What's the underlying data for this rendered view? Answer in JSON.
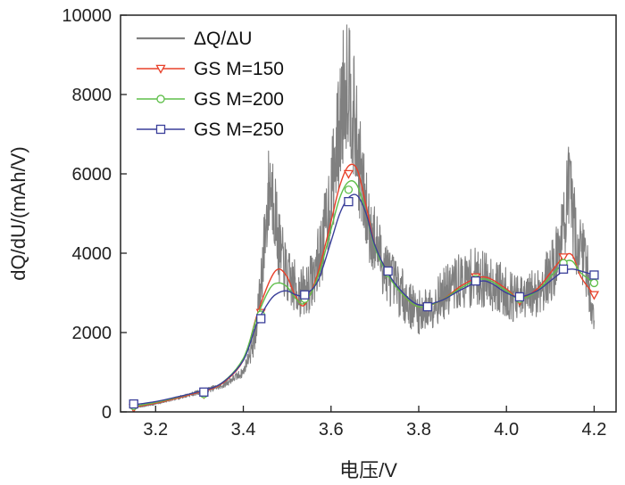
{
  "chart_data": {
    "type": "line",
    "xlabel": "电压/V",
    "ylabel": "dQ/dU/(mAh/V)",
    "xlim": [
      3.12,
      4.25
    ],
    "ylim": [
      0,
      10000
    ],
    "x_ticks": [
      3.2,
      3.4,
      3.6,
      3.8,
      4.0,
      4.2
    ],
    "x_tick_labels": [
      "3.2",
      "3.4",
      "3.6",
      "3.8",
      "4.0",
      "4.2"
    ],
    "y_ticks": [
      0,
      2000,
      4000,
      6000,
      8000,
      10000
    ],
    "y_tick_labels": [
      "0",
      "2000",
      "4000",
      "6000",
      "8000",
      "10000"
    ],
    "legend_position": "top-left",
    "grid": false,
    "raw_series": {
      "name": "ΔQ/ΔU",
      "color": "#808080",
      "x": [
        3.15,
        3.2,
        3.25,
        3.3,
        3.35,
        3.4,
        3.43,
        3.45,
        3.46,
        3.47,
        3.48,
        3.5,
        3.52,
        3.54,
        3.56,
        3.58,
        3.6,
        3.62,
        3.63,
        3.64,
        3.65,
        3.66,
        3.67,
        3.68,
        3.7,
        3.72,
        3.74,
        3.76,
        3.78,
        3.8,
        3.82,
        3.85,
        3.88,
        3.9,
        3.93,
        3.96,
        4.0,
        4.03,
        4.06,
        4.09,
        4.11,
        4.13,
        4.14,
        4.15,
        4.16,
        4.18,
        4.2
      ],
      "values": [
        100,
        200,
        350,
        500,
        650,
        1000,
        2000,
        4500,
        5800,
        5400,
        4200,
        3400,
        3100,
        3000,
        3400,
        4200,
        5500,
        7200,
        8200,
        8600,
        7600,
        6600,
        5800,
        5000,
        4300,
        3700,
        3300,
        3000,
        2700,
        2500,
        2600,
        2900,
        3200,
        3300,
        3400,
        3300,
        3000,
        2800,
        2950,
        3300,
        3700,
        4600,
        5600,
        5100,
        4300,
        3900,
        2200
      ]
    },
    "series": [
      {
        "name": "GS M=150",
        "color": "#e8402a",
        "marker": "triangle-down",
        "x": [
          3.15,
          3.2,
          3.25,
          3.3,
          3.35,
          3.4,
          3.43,
          3.46,
          3.48,
          3.5,
          3.52,
          3.54,
          3.57,
          3.6,
          3.62,
          3.64,
          3.66,
          3.68,
          3.7,
          3.73,
          3.76,
          3.8,
          3.85,
          3.9,
          3.95,
          4.0,
          4.03,
          4.07,
          4.1,
          4.13,
          4.15,
          4.17,
          4.2
        ],
        "values": [
          120,
          220,
          350,
          500,
          700,
          1300,
          2400,
          3300,
          3600,
          3400,
          2900,
          2700,
          3500,
          4800,
          5700,
          6200,
          6100,
          5200,
          4200,
          3500,
          3000,
          2650,
          2800,
          3200,
          3400,
          3100,
          2850,
          3100,
          3500,
          3900,
          3950,
          3400,
          2950
        ],
        "marker_x": [
          3.15,
          3.31,
          3.44,
          3.54,
          3.64,
          3.73,
          3.82,
          3.93,
          4.03,
          4.13,
          4.2
        ],
        "marker_values": [
          100,
          450,
          2500,
          2800,
          6000,
          3550,
          2650,
          3400,
          2800,
          3900,
          2950
        ]
      },
      {
        "name": "GS M=200",
        "color": "#5fbf4a",
        "marker": "circle",
        "x": [
          3.15,
          3.2,
          3.25,
          3.3,
          3.35,
          3.4,
          3.43,
          3.46,
          3.48,
          3.5,
          3.52,
          3.54,
          3.57,
          3.6,
          3.62,
          3.64,
          3.66,
          3.68,
          3.7,
          3.73,
          3.76,
          3.8,
          3.85,
          3.9,
          3.95,
          4.0,
          4.03,
          4.07,
          4.1,
          4.13,
          4.15,
          4.17,
          4.2
        ],
        "values": [
          140,
          240,
          370,
          520,
          720,
          1350,
          2350,
          3100,
          3250,
          3150,
          2850,
          2750,
          3400,
          4600,
          5400,
          5800,
          5700,
          5000,
          4150,
          3450,
          3000,
          2650,
          2800,
          3150,
          3350,
          3050,
          2850,
          3050,
          3400,
          3750,
          3800,
          3500,
          3250
        ],
        "marker_x": [
          3.15,
          3.31,
          3.44,
          3.54,
          3.64,
          3.73,
          3.82,
          3.93,
          4.03,
          4.13,
          4.2
        ],
        "marker_values": [
          150,
          450,
          2450,
          2850,
          5600,
          3500,
          2650,
          3350,
          2850,
          3750,
          3250
        ]
      },
      {
        "name": "GS M=250",
        "color": "#3a3f9a",
        "marker": "square",
        "x": [
          3.15,
          3.2,
          3.25,
          3.3,
          3.35,
          3.4,
          3.43,
          3.46,
          3.48,
          3.5,
          3.52,
          3.54,
          3.57,
          3.6,
          3.62,
          3.64,
          3.66,
          3.68,
          3.7,
          3.73,
          3.76,
          3.8,
          3.85,
          3.9,
          3.95,
          4.0,
          4.03,
          4.07,
          4.1,
          4.13,
          4.15,
          4.17,
          4.2
        ],
        "values": [
          180,
          260,
          380,
          520,
          720,
          1300,
          2200,
          2800,
          3000,
          3050,
          2950,
          2950,
          3300,
          4300,
          5000,
          5400,
          5450,
          5000,
          4200,
          3500,
          3050,
          2700,
          2800,
          3100,
          3300,
          3000,
          2900,
          3050,
          3300,
          3550,
          3600,
          3550,
          3450
        ],
        "marker_x": [
          3.15,
          3.31,
          3.44,
          3.54,
          3.64,
          3.73,
          3.82,
          3.93,
          4.03,
          4.13,
          4.2
        ],
        "marker_values": [
          200,
          500,
          2350,
          2950,
          5300,
          3550,
          2650,
          3300,
          2900,
          3600,
          3450
        ]
      }
    ],
    "legend": [
      {
        "label": "ΔQ/ΔU",
        "color": "#808080",
        "marker": "none"
      },
      {
        "label": "GS M=150",
        "color": "#e8402a",
        "marker": "triangle-down"
      },
      {
        "label": "GS M=200",
        "color": "#5fbf4a",
        "marker": "circle"
      },
      {
        "label": "GS M=250",
        "color": "#3a3f9a",
        "marker": "square"
      }
    ]
  }
}
